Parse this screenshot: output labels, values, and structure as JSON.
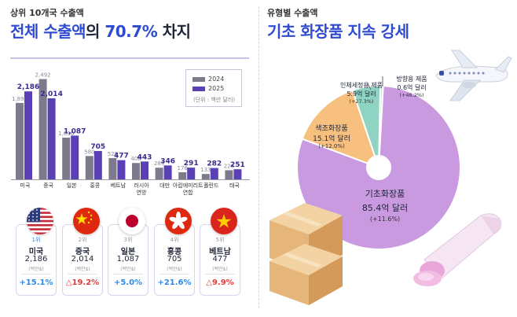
{
  "left": {
    "subtitle": "상위 10개국 수출액",
    "title_part1": "전체 수출액",
    "title_part2": "의 ",
    "title_part3": "70.7%",
    "title_part4": " 차지",
    "legend": {
      "y2024": "2024",
      "y2025": "2025",
      "unit": "(단위 : 백만 달러)"
    },
    "colors": {
      "y2024": "#7d7a8c",
      "y2025": "#5a3fb5",
      "accent": "#2f4bd1"
    }
  },
  "chart_data": [
    {
      "type": "bar",
      "categories": [
        "미국",
        "중국",
        "일본",
        "홍콩",
        "베트남",
        "러시아\n연방",
        "대만",
        "아랍에미리트\n연합",
        "폴란드",
        "태국"
      ],
      "series": [
        {
          "name": "2024",
          "values": [
            1899,
            2492,
            1036,
            580,
            529,
            406,
            289,
            176,
            133,
            226
          ]
        },
        {
          "name": "2025",
          "values": [
            2186,
            2014,
            1087,
            705,
            477,
            443,
            346,
            291,
            282,
            251
          ]
        }
      ],
      "ylim": [
        0,
        2600
      ],
      "legend_position": "top-right",
      "grid": false
    },
    {
      "type": "pie",
      "title": "",
      "slices": [
        {
          "name": "기초화장품",
          "value_text": "85.4억 달러",
          "growth": "(+11.6%)",
          "value": 85.4,
          "color": "#c99ae0"
        },
        {
          "name": "색조화장품",
          "value_text": "15.1억 달러",
          "growth": "(+12.0%)",
          "value": 15.1,
          "color": "#f7c07f"
        },
        {
          "name": "인체세정용 제품",
          "value_text": "5.9억 달러",
          "growth": "(+27.3%)",
          "value": 5.9,
          "color": "#8fd3c3"
        },
        {
          "name": "방향용 제품",
          "value_text": "0.6억 달러",
          "growth": "(+46.2%)",
          "value": 0.6,
          "color": "#c7f0b5"
        }
      ]
    }
  ],
  "cards": [
    {
      "rank": "1위",
      "name": "미국",
      "value": "2,186",
      "unit": "(백만$)",
      "growth": "+15.1%",
      "dir": "up",
      "flag": "us"
    },
    {
      "rank": "2위",
      "name": "중국",
      "value": "2,014",
      "unit": "(백만$)",
      "growth": "△19.2%",
      "dir": "down",
      "flag": "cn"
    },
    {
      "rank": "3위",
      "name": "일본",
      "value": "1,087",
      "unit": "(백만$)",
      "growth": "+5.0%",
      "dir": "up",
      "flag": "jp"
    },
    {
      "rank": "4위",
      "name": "홍콩",
      "value": "705",
      "unit": "(백만$)",
      "growth": "+21.6%",
      "dir": "up",
      "flag": "hk"
    },
    {
      "rank": "5위",
      "name": "베트남",
      "value": "477",
      "unit": "(백만$)",
      "growth": "△9.9%",
      "dir": "down",
      "flag": "vn"
    }
  ],
  "right": {
    "subtitle": "유형별 수출액",
    "title": "기초 화장품 지속 강세"
  }
}
